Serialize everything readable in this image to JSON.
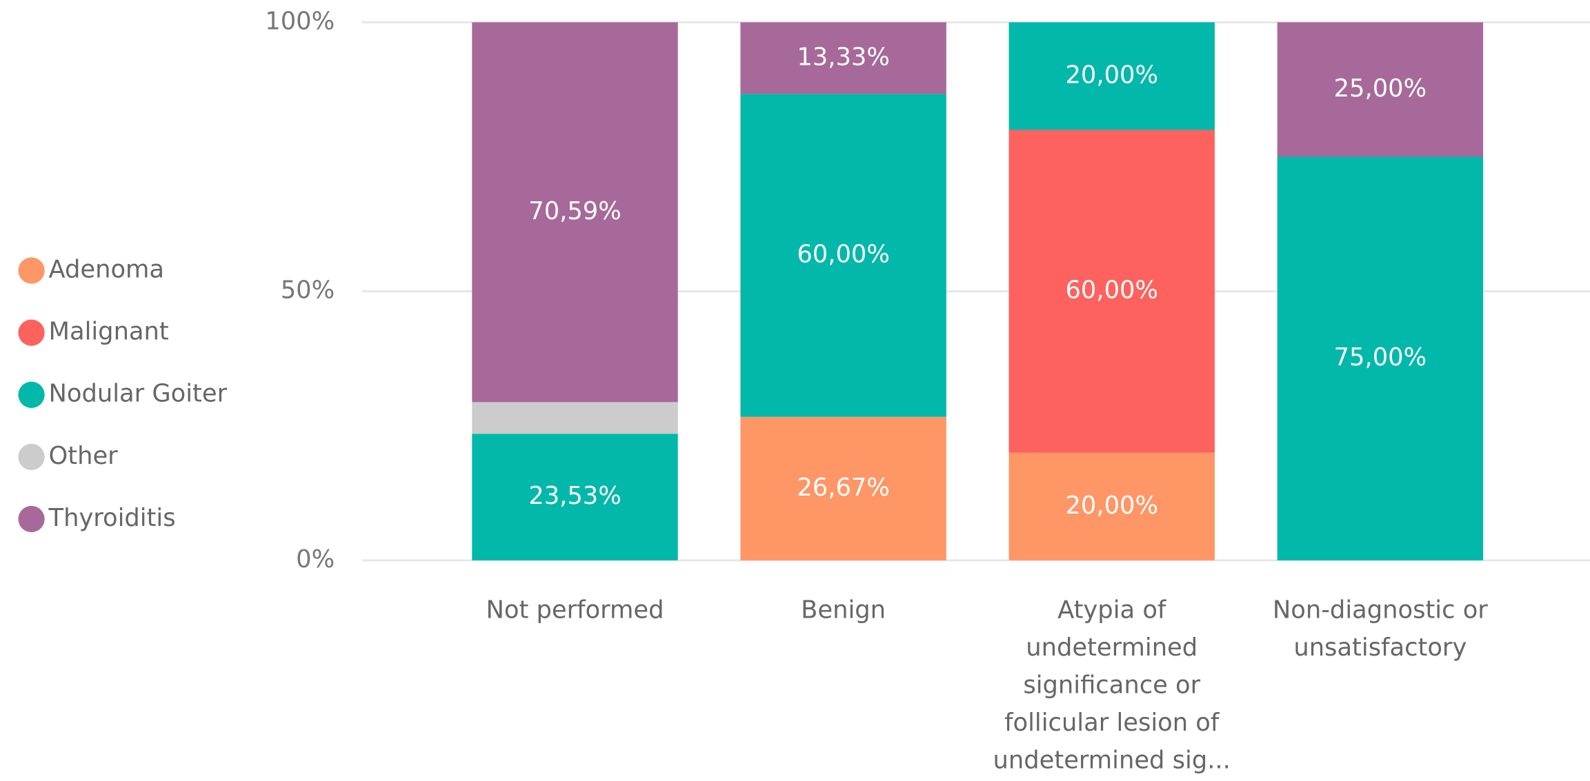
{
  "chart_data": {
    "type": "stacked_bar_100",
    "categories": [
      "Not performed",
      "Benign",
      "Atypia of undetermined significance or follicular lesion of undetermined sig...",
      "Non-diagnostic or unsatisfactory"
    ],
    "series": [
      {
        "name": "Adenoma",
        "color": "#FE9666",
        "values": [
          null,
          26.67,
          20,
          null
        ],
        "value_labels": [
          null,
          "26,67%",
          "20,00%",
          null
        ]
      },
      {
        "name": "Malignant",
        "color": "#FD625E",
        "values": [
          null,
          null,
          60,
          null
        ],
        "value_labels": [
          null,
          null,
          "60,00%",
          null
        ]
      },
      {
        "name": "Nodular Goiter",
        "color": "#01B8AA",
        "values": [
          23.53,
          60,
          20,
          75
        ],
        "value_labels": [
          "23,53%",
          "60,00%",
          "20,00%",
          "75,00%"
        ]
      },
      {
        "name": "Other",
        "color": "#CCCCCC",
        "values": [
          5.88,
          null,
          null,
          null
        ],
        "value_labels": [
          null,
          null,
          null,
          null
        ]
      },
      {
        "name": "Thyroiditis",
        "color": "#A66999",
        "values": [
          70.59,
          13.33,
          null,
          25
        ],
        "value_labels": [
          "70,59%",
          "13,33%",
          null,
          "25,00%"
        ]
      }
    ],
    "ylim": [
      0,
      100
    ],
    "yticks": [
      {
        "value": 0,
        "label": "0%"
      },
      {
        "value": 50,
        "label": "50%"
      },
      {
        "value": 100,
        "label": "100%"
      }
    ],
    "grid": true,
    "legend": "left"
  }
}
